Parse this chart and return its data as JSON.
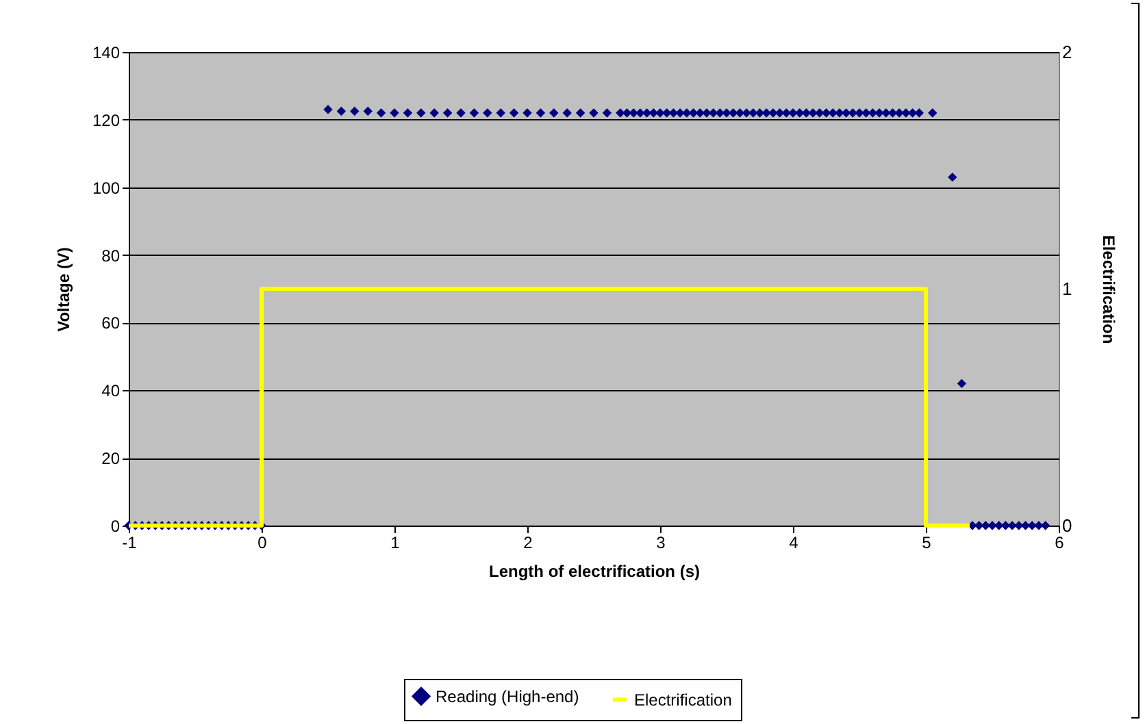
{
  "chart_data": {
    "type": "scatter",
    "xlabel": "Length of electrification (s)",
    "ylabel": "Voltage (V)",
    "y2label": "Electrification",
    "xlim": [
      -1,
      6
    ],
    "xticks": [
      -1,
      0,
      1,
      2,
      3,
      4,
      5,
      6
    ],
    "ylim": [
      0,
      140
    ],
    "yticks": [
      0,
      20,
      40,
      60,
      80,
      100,
      120,
      140
    ],
    "y2lim": [
      0,
      2
    ],
    "y2ticks": [
      0,
      1,
      2
    ],
    "grid": "y",
    "legend": "bottom",
    "series": [
      {
        "name": "Reading (High-end)",
        "marker": "diamond",
        "color": "#000080",
        "x": [
          -1,
          -0.95,
          -0.9,
          -0.85,
          -0.8,
          -0.75,
          -0.7,
          -0.65,
          -0.6,
          -0.55,
          -0.5,
          -0.45,
          -0.4,
          -0.35,
          -0.3,
          -0.25,
          -0.2,
          -0.15,
          -0.1,
          -0.05,
          0,
          0.5,
          0.6,
          0.7,
          0.8,
          0.9,
          1,
          1.1,
          1.2,
          1.3,
          1.4,
          1.5,
          1.6,
          1.7,
          1.8,
          1.9,
          2,
          2.1,
          2.2,
          2.3,
          2.4,
          2.5,
          2.6,
          2.7,
          2.75,
          2.8,
          2.85,
          2.9,
          2.95,
          3,
          3.05,
          3.1,
          3.15,
          3.2,
          3.25,
          3.3,
          3.35,
          3.4,
          3.45,
          3.5,
          3.55,
          3.6,
          3.65,
          3.7,
          3.75,
          3.8,
          3.85,
          3.9,
          3.95,
          4,
          4.05,
          4.1,
          4.15,
          4.2,
          4.25,
          4.3,
          4.35,
          4.4,
          4.45,
          4.5,
          4.55,
          4.6,
          4.65,
          4.7,
          4.75,
          4.8,
          4.85,
          4.9,
          4.95,
          5.05,
          5.2,
          5.27,
          5.35,
          5.4,
          5.45,
          5.5,
          5.55,
          5.6,
          5.65,
          5.7,
          5.75,
          5.8,
          5.85,
          5.9
        ],
        "values": [
          0,
          0,
          0,
          0,
          0,
          0,
          0,
          0,
          0,
          0,
          0,
          0,
          0,
          0,
          0,
          0,
          0,
          0,
          0,
          0,
          0,
          123,
          122.5,
          122.5,
          122.5,
          122,
          122,
          122,
          122,
          122,
          122,
          122,
          122,
          122,
          122,
          122,
          122,
          122,
          122,
          122,
          122,
          122,
          122,
          122,
          122,
          122,
          122,
          122,
          122,
          122,
          122,
          122,
          122,
          122,
          122,
          122,
          122,
          122,
          122,
          122,
          122,
          122,
          122,
          122,
          122,
          122,
          122,
          122,
          122,
          122,
          122,
          122,
          122,
          122,
          122,
          122,
          122,
          122,
          122,
          122,
          122,
          122,
          122,
          122,
          122,
          122,
          122,
          122,
          122,
          122,
          103,
          42,
          0,
          0,
          0,
          0,
          0,
          0,
          0,
          0,
          0,
          0,
          0,
          0
        ]
      },
      {
        "name": "Electrification",
        "type": "line",
        "axis": "y2",
        "color": "#ffff00",
        "line_style": "solid",
        "x": [
          -1,
          0,
          0,
          5,
          5,
          5.33
        ],
        "values": [
          0,
          0,
          1,
          1,
          0,
          0
        ]
      }
    ]
  }
}
